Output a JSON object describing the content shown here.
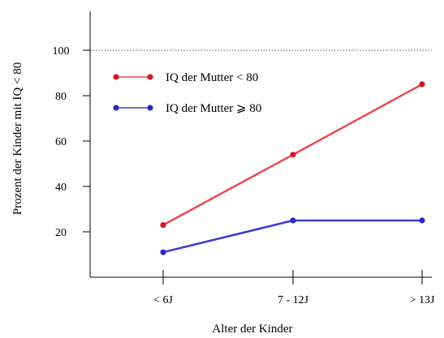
{
  "chart_data": {
    "type": "line",
    "title": "",
    "xlabel": "Alter der Kinder",
    "ylabel": "Prozent der Kinder mit IQ < 80",
    "categories": [
      "< 6J",
      "7 - 12J",
      "> 13J"
    ],
    "yticks": [
      "20",
      "40",
      "60",
      "80",
      "100"
    ],
    "ylim": [
      0,
      120
    ],
    "grid": false,
    "reference_line": 100,
    "legend_placement": "top-left",
    "series": [
      {
        "name": "IQ der Mutter < 80",
        "values": [
          23,
          54,
          85
        ],
        "color": "#e8484e",
        "marker_color": "#cc1c22"
      },
      {
        "name": "IQ der Mutter ⩾ 80",
        "values": [
          11,
          25,
          25
        ],
        "color": "#3b3bd4",
        "marker_color": "#2b2bc8"
      }
    ]
  }
}
